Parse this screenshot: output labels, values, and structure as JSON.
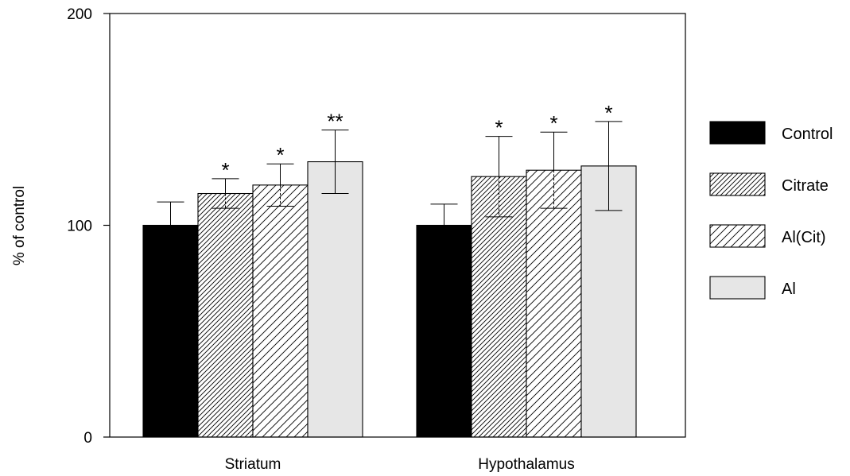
{
  "chart_data": {
    "type": "bar",
    "categories": [
      "Striatum",
      "Hypothalamus"
    ],
    "ylabel": "% of control",
    "ylim": [
      0,
      200
    ],
    "yticks": [
      0,
      100,
      200
    ],
    "grid": false,
    "legend_position": "right",
    "series": [
      {
        "name": "Control",
        "values": [
          100,
          100
        ],
        "errors": [
          11,
          10
        ],
        "annotations": [
          "",
          ""
        ],
        "fill": "#000000",
        "pattern": "solid"
      },
      {
        "name": "Citrate",
        "values": [
          115,
          123
        ],
        "errors": [
          7,
          19
        ],
        "annotations": [
          "*",
          "*"
        ],
        "fill": "#ffffff",
        "pattern": "dense-hatch"
      },
      {
        "name": "Al(Cit)",
        "values": [
          119,
          126
        ],
        "errors": [
          10,
          18
        ],
        "annotations": [
          "*",
          "*"
        ],
        "fill": "#ffffff",
        "pattern": "sparse-hatch"
      },
      {
        "name": "Al",
        "values": [
          130,
          128
        ],
        "errors": [
          15,
          21
        ],
        "annotations": [
          "**",
          "*"
        ],
        "fill": "#e6e6e6",
        "pattern": "solid"
      }
    ]
  }
}
